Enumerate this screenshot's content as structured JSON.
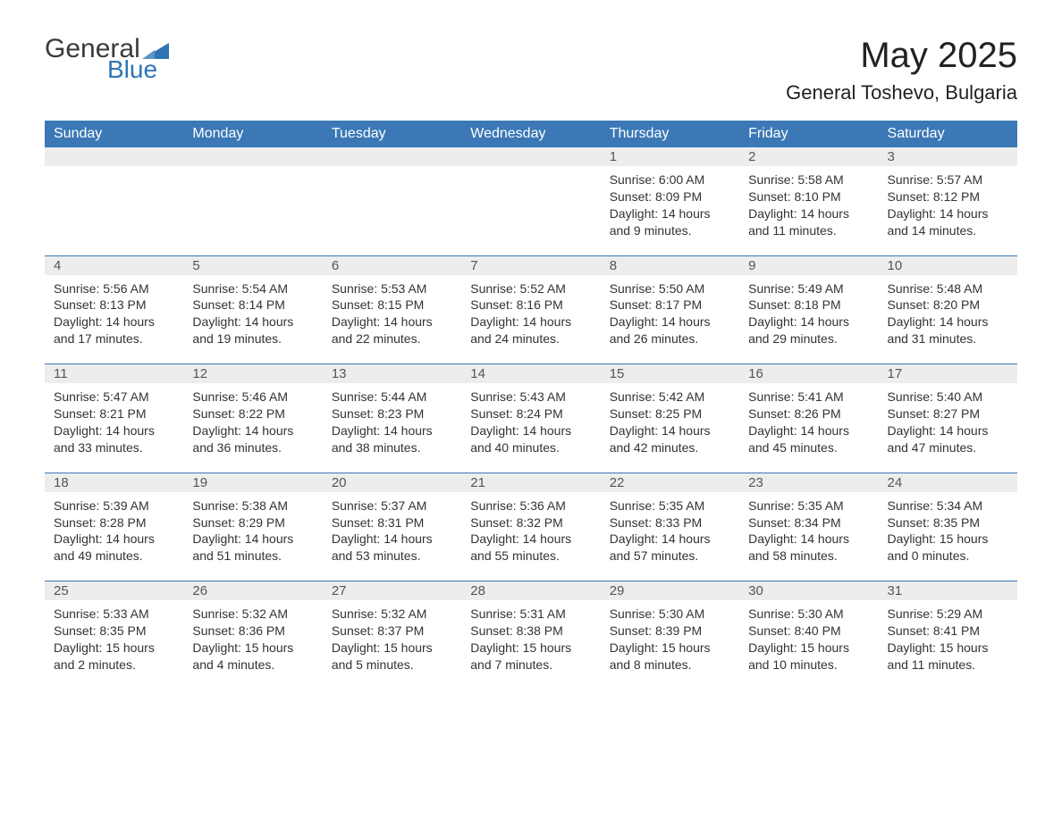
{
  "logo": {
    "word1": "General",
    "word2": "Blue"
  },
  "title": "May 2025",
  "location": "General Toshevo, Bulgaria",
  "colors": {
    "header_bg": "#3b78b5",
    "header_text": "#ffffff",
    "daynum_bg": "#ededed",
    "row_sep": "#3b78b5",
    "body_text": "#333333",
    "logo_gray": "#3a3a3a",
    "logo_blue": "#2f75b5",
    "page_bg": "#ffffff"
  },
  "fonts": {
    "title_size_pt": 30,
    "location_size_pt": 16,
    "weekday_size_pt": 12,
    "body_size_pt": 10.5
  },
  "weekdays": [
    "Sunday",
    "Monday",
    "Tuesday",
    "Wednesday",
    "Thursday",
    "Friday",
    "Saturday"
  ],
  "weeks": [
    [
      null,
      null,
      null,
      null,
      {
        "n": "1",
        "sunrise": "6:00 AM",
        "sunset": "8:09 PM",
        "daylight": "14 hours and 9 minutes."
      },
      {
        "n": "2",
        "sunrise": "5:58 AM",
        "sunset": "8:10 PM",
        "daylight": "14 hours and 11 minutes."
      },
      {
        "n": "3",
        "sunrise": "5:57 AM",
        "sunset": "8:12 PM",
        "daylight": "14 hours and 14 minutes."
      }
    ],
    [
      {
        "n": "4",
        "sunrise": "5:56 AM",
        "sunset": "8:13 PM",
        "daylight": "14 hours and 17 minutes."
      },
      {
        "n": "5",
        "sunrise": "5:54 AM",
        "sunset": "8:14 PM",
        "daylight": "14 hours and 19 minutes."
      },
      {
        "n": "6",
        "sunrise": "5:53 AM",
        "sunset": "8:15 PM",
        "daylight": "14 hours and 22 minutes."
      },
      {
        "n": "7",
        "sunrise": "5:52 AM",
        "sunset": "8:16 PM",
        "daylight": "14 hours and 24 minutes."
      },
      {
        "n": "8",
        "sunrise": "5:50 AM",
        "sunset": "8:17 PM",
        "daylight": "14 hours and 26 minutes."
      },
      {
        "n": "9",
        "sunrise": "5:49 AM",
        "sunset": "8:18 PM",
        "daylight": "14 hours and 29 minutes."
      },
      {
        "n": "10",
        "sunrise": "5:48 AM",
        "sunset": "8:20 PM",
        "daylight": "14 hours and 31 minutes."
      }
    ],
    [
      {
        "n": "11",
        "sunrise": "5:47 AM",
        "sunset": "8:21 PM",
        "daylight": "14 hours and 33 minutes."
      },
      {
        "n": "12",
        "sunrise": "5:46 AM",
        "sunset": "8:22 PM",
        "daylight": "14 hours and 36 minutes."
      },
      {
        "n": "13",
        "sunrise": "5:44 AM",
        "sunset": "8:23 PM",
        "daylight": "14 hours and 38 minutes."
      },
      {
        "n": "14",
        "sunrise": "5:43 AM",
        "sunset": "8:24 PM",
        "daylight": "14 hours and 40 minutes."
      },
      {
        "n": "15",
        "sunrise": "5:42 AM",
        "sunset": "8:25 PM",
        "daylight": "14 hours and 42 minutes."
      },
      {
        "n": "16",
        "sunrise": "5:41 AM",
        "sunset": "8:26 PM",
        "daylight": "14 hours and 45 minutes."
      },
      {
        "n": "17",
        "sunrise": "5:40 AM",
        "sunset": "8:27 PM",
        "daylight": "14 hours and 47 minutes."
      }
    ],
    [
      {
        "n": "18",
        "sunrise": "5:39 AM",
        "sunset": "8:28 PM",
        "daylight": "14 hours and 49 minutes."
      },
      {
        "n": "19",
        "sunrise": "5:38 AM",
        "sunset": "8:29 PM",
        "daylight": "14 hours and 51 minutes."
      },
      {
        "n": "20",
        "sunrise": "5:37 AM",
        "sunset": "8:31 PM",
        "daylight": "14 hours and 53 minutes."
      },
      {
        "n": "21",
        "sunrise": "5:36 AM",
        "sunset": "8:32 PM",
        "daylight": "14 hours and 55 minutes."
      },
      {
        "n": "22",
        "sunrise": "5:35 AM",
        "sunset": "8:33 PM",
        "daylight": "14 hours and 57 minutes."
      },
      {
        "n": "23",
        "sunrise": "5:35 AM",
        "sunset": "8:34 PM",
        "daylight": "14 hours and 58 minutes."
      },
      {
        "n": "24",
        "sunrise": "5:34 AM",
        "sunset": "8:35 PM",
        "daylight": "15 hours and 0 minutes."
      }
    ],
    [
      {
        "n": "25",
        "sunrise": "5:33 AM",
        "sunset": "8:35 PM",
        "daylight": "15 hours and 2 minutes."
      },
      {
        "n": "26",
        "sunrise": "5:32 AM",
        "sunset": "8:36 PM",
        "daylight": "15 hours and 4 minutes."
      },
      {
        "n": "27",
        "sunrise": "5:32 AM",
        "sunset": "8:37 PM",
        "daylight": "15 hours and 5 minutes."
      },
      {
        "n": "28",
        "sunrise": "5:31 AM",
        "sunset": "8:38 PM",
        "daylight": "15 hours and 7 minutes."
      },
      {
        "n": "29",
        "sunrise": "5:30 AM",
        "sunset": "8:39 PM",
        "daylight": "15 hours and 8 minutes."
      },
      {
        "n": "30",
        "sunrise": "5:30 AM",
        "sunset": "8:40 PM",
        "daylight": "15 hours and 10 minutes."
      },
      {
        "n": "31",
        "sunrise": "5:29 AM",
        "sunset": "8:41 PM",
        "daylight": "15 hours and 11 minutes."
      }
    ]
  ],
  "labels": {
    "sunrise": "Sunrise: ",
    "sunset": "Sunset: ",
    "daylight": "Daylight: "
  }
}
